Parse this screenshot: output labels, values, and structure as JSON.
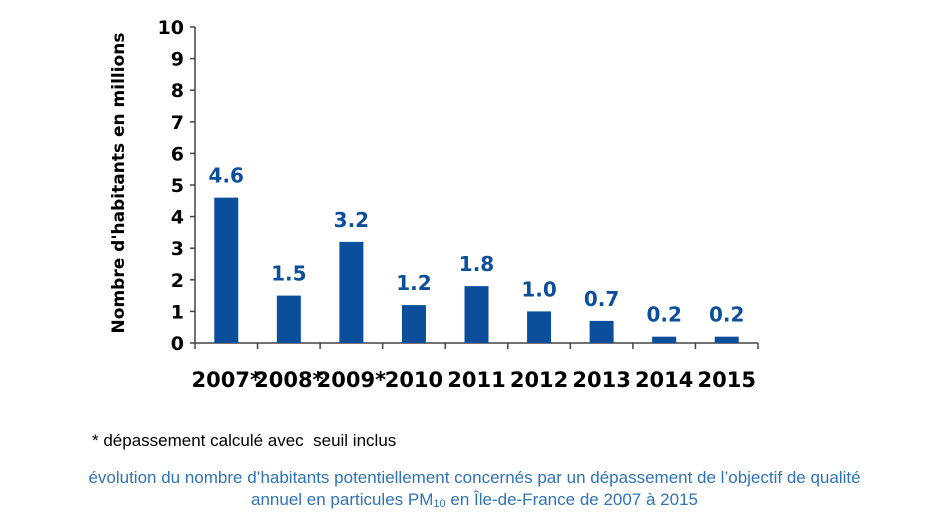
{
  "chart_data": {
    "type": "bar",
    "categories": [
      "2007*",
      "2008*",
      "2009*",
      "2010",
      "2011",
      "2012",
      "2013",
      "2014",
      "2015"
    ],
    "values": [
      4.6,
      1.5,
      3.2,
      1.2,
      1.8,
      1.0,
      0.7,
      0.2,
      0.2
    ],
    "value_labels": [
      "4.6",
      "1.5",
      "3.2",
      "1.2",
      "1.8",
      "1.0",
      "0.7",
      "0.2",
      "0.2"
    ],
    "ylabel": "Nombre d'habitants en millions",
    "ylim": [
      0,
      10
    ],
    "yticks": [
      0,
      1,
      2,
      3,
      4,
      5,
      6,
      7,
      8,
      9,
      10
    ],
    "grid": false,
    "colors": {
      "bar": "#0b4f9c",
      "value_label": "#0b4f9c",
      "axis": "#444444"
    }
  },
  "footnote": "* dépassement calculé avec  seuil inclus",
  "caption": {
    "line1": "évolution du nombre d’habitants potentiellement concernés par un dépassement de l’objectif de qualité",
    "line2_prefix": "annuel en particules PM",
    "line2_sub": "10",
    "line2_suffix": " en Île-de-France de 2007 à 2015",
    "color": "#2f73b5"
  }
}
